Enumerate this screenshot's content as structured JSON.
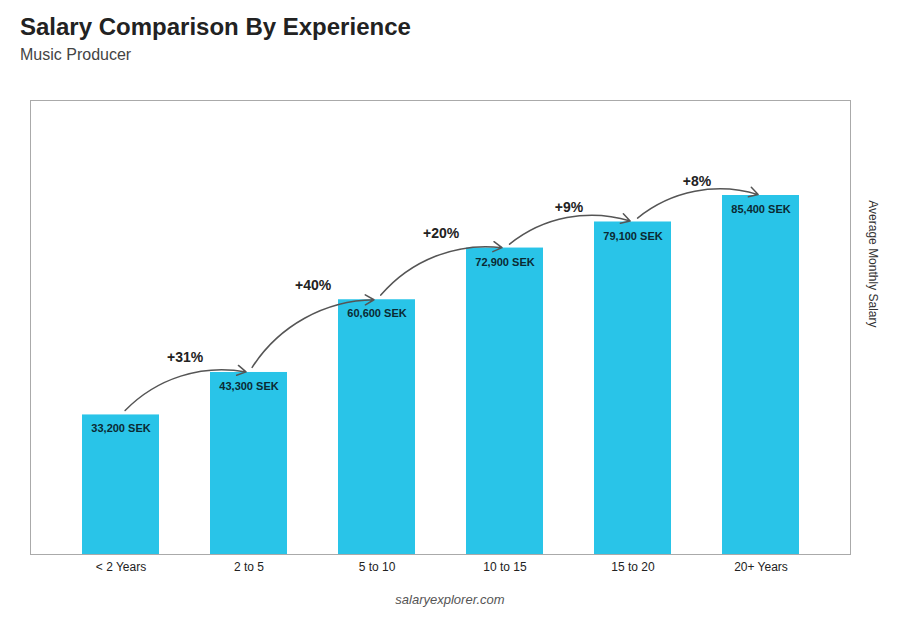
{
  "chart_data": {
    "type": "bar",
    "title": "Salary Comparison By Experience",
    "subtitle": "Music Producer",
    "ylabel": "Average Monthly Salary",
    "caption": "salaryexplorer.com",
    "categories": [
      "< 2 Years",
      "2 to 5",
      "5 to 10",
      "10 to 15",
      "15 to 20",
      "20+ Years"
    ],
    "values": [
      33200,
      43300,
      60600,
      72900,
      79100,
      85400
    ],
    "value_labels": [
      "33,200 SEK",
      "43,300 SEK",
      "60,600 SEK",
      "72,900 SEK",
      "79,100 SEK",
      "85,400 SEK"
    ],
    "data_labels": true,
    "annotations": [
      "+31%",
      "+40%",
      "+20%",
      "+9%",
      "+8%"
    ],
    "color": "#29c4e8",
    "ylim": [
      0,
      108000
    ],
    "tick_labels": "x"
  }
}
